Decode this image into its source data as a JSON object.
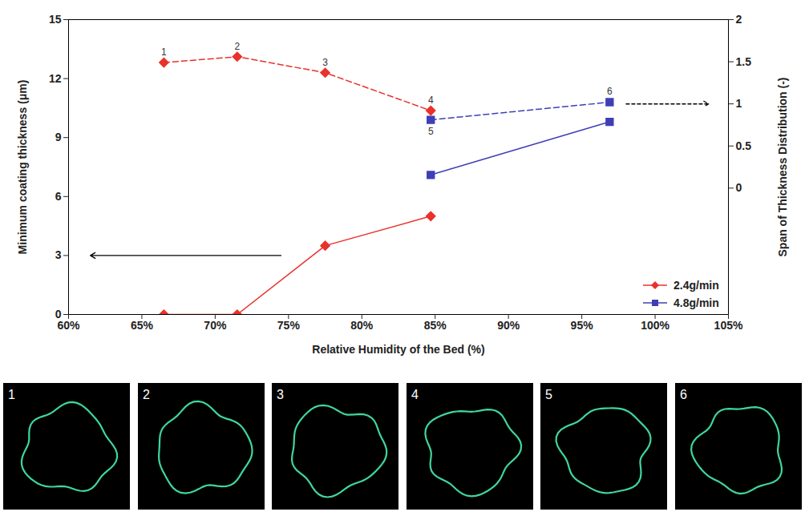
{
  "chart_data": {
    "type": "line",
    "x_label": "Relative Humidity of the Bed (%)",
    "y_label": "Minimum coating thickness (μm)",
    "y2_label": "Span of Thickness Distribution (-)",
    "xlim": [
      60,
      105
    ],
    "xticks": [
      {
        "value": 60,
        "label": "60%"
      },
      {
        "value": 65,
        "label": "65%"
      },
      {
        "value": 70,
        "label": "70%"
      },
      {
        "value": 75,
        "label": "75%"
      },
      {
        "value": 80,
        "label": "80%"
      },
      {
        "value": 85,
        "label": "85%"
      },
      {
        "value": 90,
        "label": "90%"
      },
      {
        "value": 95,
        "label": "95%"
      },
      {
        "value": 100,
        "label": "100%"
      },
      {
        "value": 105,
        "label": "105%"
      }
    ],
    "ylim": [
      0,
      15
    ],
    "yticks": [
      0,
      3,
      6,
      9,
      12,
      15
    ],
    "y2lim": [
      -1.5,
      2
    ],
    "y2ticks": [
      0,
      0.5,
      1,
      1.5,
      2
    ],
    "grid": false,
    "legend": "lower right",
    "series": [
      {
        "name": "2.4g/min",
        "color": "#e8322b",
        "marker": "diamond",
        "line_style": "solid",
        "x": [
          66.5,
          71.5,
          77.5,
          84.7
        ],
        "values": [
          0,
          0,
          3.5,
          5.0
        ]
      },
      {
        "color": "#e8322b",
        "marker": "diamond",
        "line_style": "dashed",
        "axis": "y2",
        "x": [
          66.5,
          71.5,
          77.5,
          84.7
        ],
        "values": [
          1.49,
          1.56,
          1.37,
          0.92
        ]
      },
      {
        "name": "4.8g/min",
        "color": "#3f3fb5",
        "marker": "square",
        "line_style": "solid",
        "x": [
          84.7,
          96.9
        ],
        "values": [
          7.1,
          9.8
        ]
      },
      {
        "color": "#3f3fb5",
        "marker": "square",
        "line_style": "dashed",
        "axis": "y2",
        "x": [
          84.7,
          96.9
        ],
        "values": [
          0.81,
          1.02
        ]
      }
    ],
    "annotations": [
      {
        "text": "1",
        "x": 66.5,
        "y": 1.49,
        "axis": "y2"
      },
      {
        "text": "2",
        "x": 71.5,
        "y": 1.56,
        "axis": "y2"
      },
      {
        "text": "3",
        "x": 77.5,
        "y": 1.37,
        "axis": "y2"
      },
      {
        "text": "4",
        "x": 84.7,
        "y": 0.92,
        "axis": "y2"
      },
      {
        "text": "5",
        "x": 84.7,
        "y": 0.81,
        "axis": "y2"
      },
      {
        "text": "6",
        "x": 96.9,
        "y": 1.02,
        "axis": "y2"
      }
    ]
  },
  "image_panels": [
    "1",
    "2",
    "3",
    "4",
    "5",
    "6"
  ]
}
